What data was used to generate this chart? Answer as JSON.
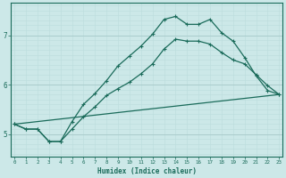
{
  "xlabel": "Humidex (Indice chaleur)",
  "bg_color": "#cce8e8",
  "grid_color_major": "#aacccc",
  "grid_color_minor": "#bbdddd",
  "line_color": "#1a6b5a",
  "x_ticks": [
    0,
    1,
    2,
    3,
    4,
    5,
    6,
    7,
    8,
    9,
    10,
    11,
    12,
    13,
    14,
    15,
    16,
    17,
    18,
    19,
    20,
    21,
    22,
    23
  ],
  "y_ticks": [
    5,
    6,
    7
  ],
  "xlim": [
    -0.3,
    23.3
  ],
  "ylim": [
    4.55,
    7.65
  ],
  "line1_x": [
    0,
    23
  ],
  "line1_y": [
    5.2,
    5.8
  ],
  "line2_x": [
    0,
    1,
    2,
    3,
    4,
    5,
    6,
    7,
    8,
    9,
    10,
    11,
    12,
    13,
    14,
    15,
    16,
    17,
    18,
    19,
    20,
    21,
    22,
    23
  ],
  "line2_y": [
    5.2,
    5.1,
    5.1,
    4.85,
    4.85,
    5.1,
    5.35,
    5.55,
    5.78,
    5.92,
    6.05,
    6.22,
    6.42,
    6.72,
    6.92,
    6.88,
    6.88,
    6.82,
    6.65,
    6.5,
    6.42,
    6.2,
    5.98,
    5.8
  ],
  "line3_x": [
    0,
    1,
    2,
    3,
    4,
    5,
    6,
    7,
    8,
    9,
    10,
    11,
    12,
    13,
    14,
    15,
    16,
    17,
    18,
    19,
    20,
    21,
    22,
    23
  ],
  "line3_y": [
    5.2,
    5.1,
    5.1,
    4.85,
    4.85,
    5.25,
    5.6,
    5.82,
    6.08,
    6.38,
    6.58,
    6.78,
    7.02,
    7.32,
    7.38,
    7.22,
    7.22,
    7.32,
    7.05,
    6.88,
    6.55,
    6.18,
    5.88,
    5.8
  ]
}
